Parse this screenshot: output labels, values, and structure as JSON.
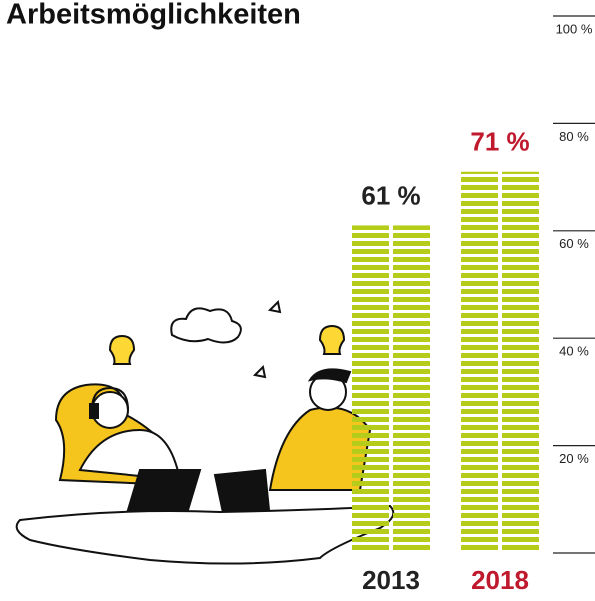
{
  "chart_data": {
    "type": "bar",
    "title": "Arbeitsmöglichkeiten",
    "categories": [
      "2013",
      "2018"
    ],
    "values": [
      61,
      71
    ],
    "value_labels": [
      "61 %",
      "71 %"
    ],
    "label_colors": [
      "#222222",
      "#c0192e"
    ],
    "color": "#b5cc1a",
    "ylim": [
      0,
      100
    ],
    "yticks": [
      {
        "value": 20,
        "label": "20 %"
      },
      {
        "value": 40,
        "label": "40 %"
      },
      {
        "value": 60,
        "label": "60 %"
      },
      {
        "value": 80,
        "label": "80 %"
      },
      {
        "value": 100,
        "label": "100 %"
      }
    ]
  }
}
